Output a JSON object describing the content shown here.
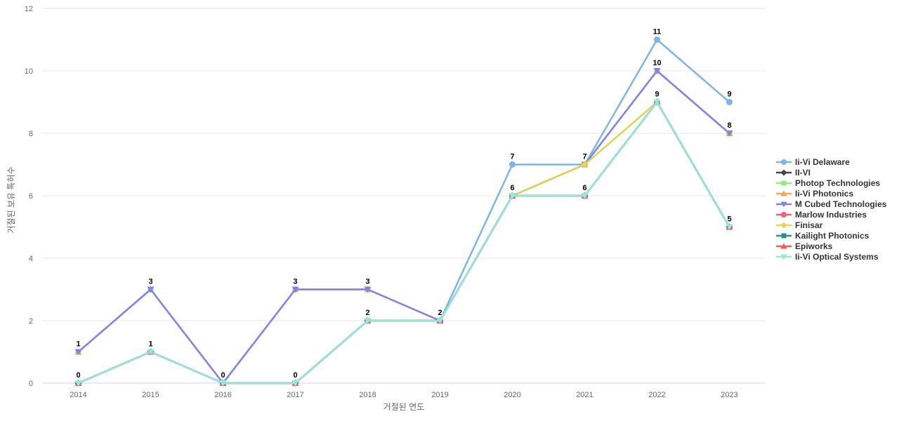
{
  "chart_data": {
    "type": "line",
    "title": "",
    "xlabel": "거절된 연도",
    "ylabel": "거절된 보유 특허수",
    "categories": [
      "2014",
      "2015",
      "2016",
      "2017",
      "2018",
      "2019",
      "2020",
      "2021",
      "2022",
      "2023"
    ],
    "ylim": [
      0,
      12
    ],
    "yticks": [
      0,
      2,
      4,
      6,
      8,
      10,
      12
    ],
    "grid": "horizontal",
    "legend_position": "right",
    "series": [
      {
        "name": "Ii-Vi Delaware",
        "color": "#7cb5ec",
        "symbol": "circle",
        "values": [
          null,
          null,
          null,
          null,
          null,
          2,
          7,
          7,
          11,
          9
        ]
      },
      {
        "name": "II-VI",
        "color": "#434348",
        "symbol": "diamond",
        "values": [
          0,
          1,
          0,
          0,
          2,
          2,
          6,
          6,
          9,
          5
        ]
      },
      {
        "name": "Photop Technologies",
        "color": "#90ed7d",
        "symbol": "square",
        "values": [
          1,
          3,
          0,
          3,
          3,
          2,
          6,
          7,
          10,
          8
        ]
      },
      {
        "name": "Ii-Vi Photonics",
        "color": "#f7a35c",
        "symbol": "triangle",
        "values": [
          1,
          3,
          0,
          3,
          3,
          2,
          6,
          7,
          10,
          8
        ]
      },
      {
        "name": "M Cubed Technologies",
        "color": "#8085e9",
        "symbol": "triangle-down",
        "values": [
          1,
          3,
          0,
          3,
          3,
          2,
          6,
          7,
          10,
          8
        ]
      },
      {
        "name": "Marlow Industries",
        "color": "#f15c80",
        "symbol": "circle",
        "values": [
          0,
          1,
          0,
          0,
          2,
          2,
          6,
          6,
          9,
          5
        ]
      },
      {
        "name": "Finisar",
        "color": "#e4d354",
        "symbol": "diamond",
        "values": [
          null,
          null,
          null,
          null,
          null,
          null,
          6,
          7,
          9,
          null
        ]
      },
      {
        "name": "Kailight Photonics",
        "color": "#2b908f",
        "symbol": "square",
        "values": [
          0,
          1,
          0,
          0,
          2,
          2,
          6,
          6,
          9,
          5
        ]
      },
      {
        "name": "Epiworks",
        "color": "#f45b5b",
        "symbol": "triangle",
        "values": [
          0,
          1,
          0,
          0,
          2,
          2,
          6,
          6,
          9,
          5
        ]
      },
      {
        "name": "Ii-Vi Optical Systems",
        "color": "#91e8e1",
        "symbol": "triangle-down",
        "values": [
          0,
          1,
          0,
          0,
          2,
          2,
          6,
          6,
          9,
          5
        ]
      }
    ],
    "data_label_color": "#000000",
    "tick_label_color": "#666666",
    "axis_title_color": "#666666",
    "gridline_color": "#e6e6e6",
    "xaxis_line_color": "#ccd6eb"
  }
}
